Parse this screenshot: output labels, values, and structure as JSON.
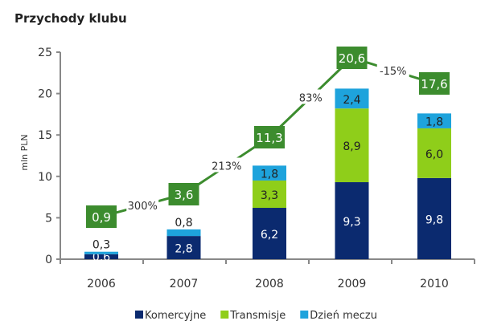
{
  "title": "Przychody klubu",
  "chart_data": {
    "type": "bar",
    "stacked": true,
    "title": "Przychody klubu",
    "ylabel": "mln PLN",
    "xlabel": "",
    "ylim": [
      0,
      25
    ],
    "yticks": [
      0,
      5,
      10,
      15,
      20,
      25
    ],
    "categories": [
      "2006",
      "2007",
      "2008",
      "2009",
      "2010"
    ],
    "series": [
      {
        "name": "Komercyjne",
        "color": "#0b2a6f",
        "values": [
          0.6,
          2.8,
          6.2,
          9.3,
          9.8
        ],
        "labels": [
          "0,6",
          "2,8",
          "6,2",
          "9,3",
          "9,8"
        ]
      },
      {
        "name": "Transmisje",
        "color": "#8fce1a",
        "values": [
          0,
          0,
          3.3,
          8.9,
          6.0
        ],
        "labels": [
          "",
          "",
          "3,3",
          "8,9",
          "6,0"
        ]
      },
      {
        "name": "Dzień meczu",
        "color": "#1ea3dc",
        "values": [
          0.3,
          0.8,
          1.8,
          2.4,
          1.8
        ],
        "labels": [
          "0,3",
          "0,8",
          "1,8",
          "2,4",
          "1,8"
        ]
      }
    ],
    "totals": {
      "values": [
        0.9,
        3.6,
        11.3,
        20.6,
        17.6
      ],
      "labels": [
        "0,9",
        "3,6",
        "11,3",
        "20,6",
        "17,6"
      ],
      "color": "#3c8c2e"
    },
    "growth": [
      "300%",
      "213%",
      "83%",
      "-15%"
    ],
    "legend": "bottom"
  }
}
